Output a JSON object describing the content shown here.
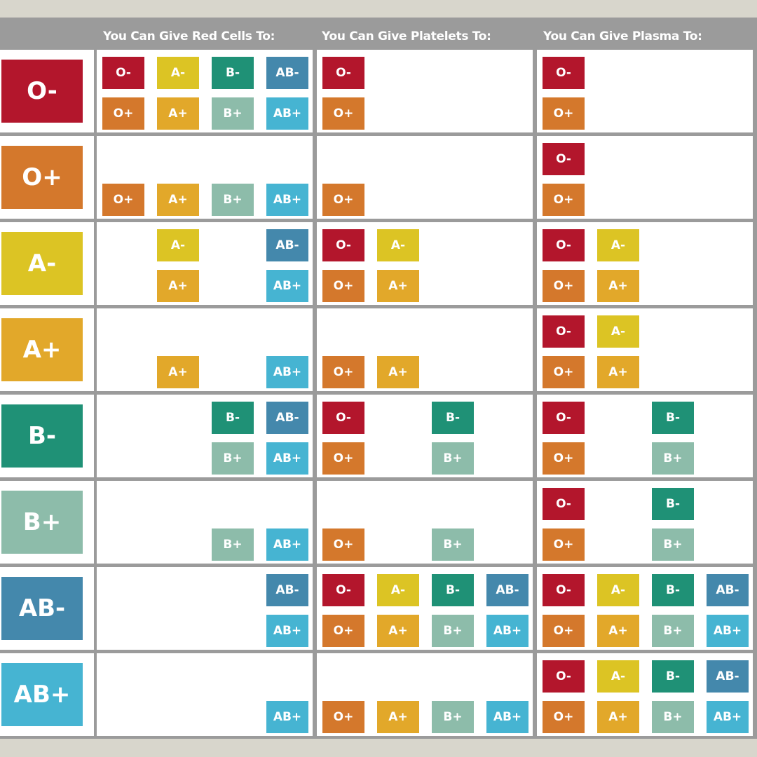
{
  "headers": {
    "red_cells": "You Can Give Red Cells To:",
    "platelets": "You Can Give Platelets To:",
    "plasma": "You Can Give Plasma To:"
  },
  "colors": {
    "O-": "#b3162c",
    "O+": "#d4782c",
    "A-": "#dcc424",
    "A+": "#e2a82a",
    "B-": "#1f9176",
    "B+": "#8dbcaa",
    "AB-": "#4488ac",
    "AB+": "#46b4d2",
    "header_bg": "#9b9b9b",
    "page_bg": "#d8d6cc"
  },
  "grid_order": [
    "O-",
    "A-",
    "B-",
    "AB-",
    "O+",
    "A+",
    "B+",
    "AB+"
  ],
  "rows": [
    {
      "donor": "O-",
      "red_cells": [
        "O-",
        "A-",
        "B-",
        "AB-",
        "O+",
        "A+",
        "B+",
        "AB+"
      ],
      "platelets": [
        "O-",
        "O+"
      ],
      "plasma": [
        "O-",
        "O+"
      ]
    },
    {
      "donor": "O+",
      "red_cells": [
        "O+",
        "A+",
        "B+",
        "AB+"
      ],
      "platelets": [
        "O+"
      ],
      "plasma": [
        "O-",
        "O+"
      ]
    },
    {
      "donor": "A-",
      "red_cells": [
        "A-",
        "AB-",
        "A+",
        "AB+"
      ],
      "platelets": [
        "O-",
        "A-",
        "O+",
        "A+"
      ],
      "plasma": [
        "O-",
        "A-",
        "O+",
        "A+"
      ]
    },
    {
      "donor": "A+",
      "red_cells": [
        "A+",
        "AB+"
      ],
      "platelets": [
        "O+",
        "A+"
      ],
      "plasma": [
        "O-",
        "A-",
        "O+",
        "A+"
      ]
    },
    {
      "donor": "B-",
      "red_cells": [
        "B-",
        "AB-",
        "B+",
        "AB+"
      ],
      "platelets": [
        "O-",
        "B-",
        "O+",
        "B+"
      ],
      "plasma": [
        "O-",
        "B-",
        "O+",
        "B+"
      ]
    },
    {
      "donor": "B+",
      "red_cells": [
        "B+",
        "AB+"
      ],
      "platelets": [
        "O+",
        "B+"
      ],
      "plasma": [
        "O-",
        "B-",
        "O+",
        "B+"
      ]
    },
    {
      "donor": "AB-",
      "red_cells": [
        "AB-",
        "AB+"
      ],
      "platelets": [
        "O-",
        "A-",
        "B-",
        "AB-",
        "O+",
        "A+",
        "B+",
        "AB+"
      ],
      "plasma": [
        "O-",
        "A-",
        "B-",
        "AB-",
        "O+",
        "A+",
        "B+",
        "AB+"
      ]
    },
    {
      "donor": "AB+",
      "red_cells": [
        "AB+"
      ],
      "platelets": [
        "O+",
        "A+",
        "B+",
        "AB+"
      ],
      "plasma": [
        "O-",
        "A-",
        "B-",
        "AB-",
        "O+",
        "A+",
        "B+",
        "AB+"
      ]
    }
  ]
}
